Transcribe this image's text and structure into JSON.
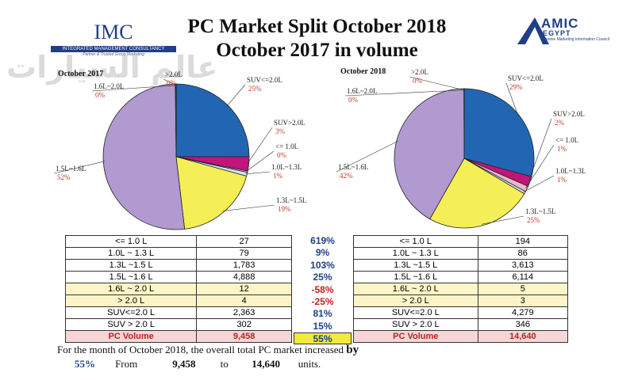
{
  "title": {
    "line1": "PC Market Split October 2018",
    "line2": "October 2017 in volume"
  },
  "logos": {
    "imc": {
      "name": "IMC",
      "subtitle": "INTEGRATED MANAGEMENT CONSULTANCY",
      "tagline": "Partner & Trusted Group Marketing"
    },
    "amic": {
      "name": "AMIC",
      "country": "EGYPT",
      "subtitle": "Automotive Marketing Information Council"
    },
    "watermark": "عالم السيارات"
  },
  "chart_data": [
    {
      "type": "pie",
      "title": "October 2017",
      "slices": [
        {
          "label": "SUV<=2.0L",
          "value": 2363,
          "percent": "25%",
          "color": "#2266b3"
        },
        {
          "label": "SUV>2.0L",
          "value": 302,
          "percent": "3%",
          "color": "#c0157a"
        },
        {
          "label": "<= 1.0L",
          "value": 27,
          "percent": "0%",
          "color": "#f0f0ff"
        },
        {
          "label": "1.0L~1.3L",
          "value": 79,
          "percent": "1%",
          "color": "#cfe6f2"
        },
        {
          "label": "1.3L~1.5L",
          "value": 1783,
          "percent": "19%",
          "color": "#f4ee57"
        },
        {
          "label": "1.5L~1.6L",
          "value": 4888,
          "percent": "52%",
          "color": "#b09ad0"
        },
        {
          "label": "1.6L~2.0L",
          "value": 12,
          "percent": "0%",
          "color": "#7a2a4a"
        },
        {
          "label": ">2.0L",
          "value": 4,
          "percent": "0%",
          "color": "#1a2a6a"
        }
      ]
    },
    {
      "type": "pie",
      "title": "October 2018",
      "slices": [
        {
          "label": "SUV<=2.0L",
          "value": 4279,
          "percent": "29%",
          "color": "#2266b3"
        },
        {
          "label": "SUV>2.0L",
          "value": 346,
          "percent": "2%",
          "color": "#c0157a"
        },
        {
          "label": "<= 1.0L",
          "value": 194,
          "percent": "1%",
          "color": "#e8b8c8"
        },
        {
          "label": "1.0L~1.3L",
          "value": 86,
          "percent": "1%",
          "color": "#cfe6f2"
        },
        {
          "label": "1.3L~1.5L",
          "value": 3613,
          "percent": "25%",
          "color": "#f4ee57"
        },
        {
          "label": "1.5L~1.6L",
          "value": 6114,
          "percent": "42%",
          "color": "#b09ad0"
        },
        {
          "label": "1.6L~2.0L",
          "value": 5,
          "percent": "0%",
          "color": "#7a2a4a"
        },
        {
          "label": ">2.0L",
          "value": 3,
          "percent": "0%",
          "color": "#1a2a6a"
        }
      ]
    }
  ],
  "table": {
    "rows": [
      {
        "label": "<= 1.0 L",
        "v2017": "27",
        "change": "619%",
        "v2018": "194",
        "highlight": false,
        "negative": false
      },
      {
        "label": "1.0L ~ 1.3 L",
        "v2017": "79",
        "change": "9%",
        "v2018": "86",
        "highlight": false,
        "negative": false
      },
      {
        "label": "1.3L ~1.5 L",
        "v2017": "1,783",
        "change": "103%",
        "v2018": "3,613",
        "highlight": false,
        "negative": false
      },
      {
        "label": "1.5L ~1.6 L",
        "v2017": "4,888",
        "change": "25%",
        "v2018": "6,114",
        "highlight": false,
        "negative": false
      },
      {
        "label": "1.6L ~ 2.0 L",
        "v2017": "12",
        "change": "-58%",
        "v2018": "5",
        "highlight": true,
        "negative": true
      },
      {
        "label": "> 2.0 L",
        "v2017": "4",
        "change": "-25%",
        "v2018": "3",
        "highlight": true,
        "negative": true
      },
      {
        "label": "SUV<=2.0 L",
        "v2017": "2,363",
        "change": "81%",
        "v2018": "4,279",
        "highlight": false,
        "negative": false
      },
      {
        "label": "SUV > 2.0 L",
        "v2017": "302",
        "change": "15%",
        "v2018": "346",
        "highlight": false,
        "negative": false
      }
    ],
    "total": {
      "label": "PC Volume",
      "v2017": "9,458",
      "change": "55%",
      "v2018": "14,640"
    }
  },
  "summary": {
    "line1": "For the month of October 2018,  the overall total PC market increased",
    "by": "by",
    "pct": "55%",
    "from": "From",
    "v_from": "9,458",
    "to": "to",
    "v_to": "14,640",
    "units": "units."
  }
}
